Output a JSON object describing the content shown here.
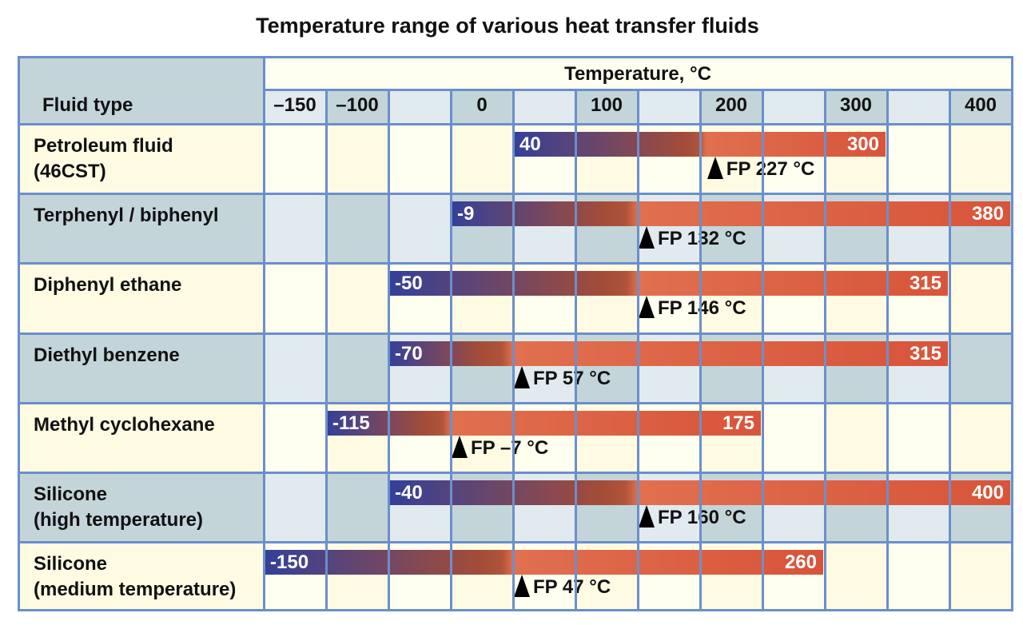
{
  "chart_data": {
    "type": "bar",
    "orientation": "horizontal-range",
    "title": "Temperature range of various heat transfer fluids",
    "row_header": "Fluid type",
    "axis_label": "Temperature, °C",
    "tick_labels": [
      "–150",
      "–100",
      "",
      "0",
      "",
      "100",
      "",
      "200",
      "",
      "300",
      "",
      "400"
    ],
    "series": [
      {
        "fluid": "Petroleum fluid\n(46CST)",
        "min": 40,
        "max": 300,
        "min_label": "40",
        "max_label": "300",
        "fp_label": "FP 227 °C",
        "fp": 227
      },
      {
        "fluid": "Terphenyl / biphenyl",
        "min": -9,
        "max": 380,
        "min_label": "-9",
        "max_label": "380",
        "fp_label": "FP 132 °C",
        "fp": 132
      },
      {
        "fluid": "Diphenyl ethane",
        "min": -50,
        "max": 315,
        "min_label": "-50",
        "max_label": "315",
        "fp_label": "FP 146 °C",
        "fp": 146
      },
      {
        "fluid": "Diethyl benzene",
        "min": -70,
        "max": 315,
        "min_label": "-70",
        "max_label": "315",
        "fp_label": "FP 57 °C",
        "fp": 57
      },
      {
        "fluid": "Methyl cyclohexane",
        "min": -115,
        "max": 175,
        "min_label": "-115",
        "max_label": "175",
        "fp_label": "FP –7 °C",
        "fp": -7
      },
      {
        "fluid": "Silicone\n(high temperature)",
        "min": -40,
        "max": 400,
        "min_label": "-40",
        "max_label": "400",
        "fp_label": "FP 160 °C",
        "fp": 160
      },
      {
        "fluid": "Silicone\n(medium temperature)",
        "min": -150,
        "max": 260,
        "min_label": "-150",
        "max_label": "260",
        "fp_label": "FP 47 °C",
        "fp": 47
      }
    ],
    "colors": {
      "grid_line": "#6b8fcb",
      "cream": "#fffbe3",
      "cream_light": "#fffff0",
      "blue": "#c3d5d9",
      "blue_light": "#e1eaee",
      "bar_cold": "#33409a",
      "bar_mid": "#a34c38",
      "bar_hot": "#e0704f",
      "bar_end": "#d8543a"
    }
  }
}
